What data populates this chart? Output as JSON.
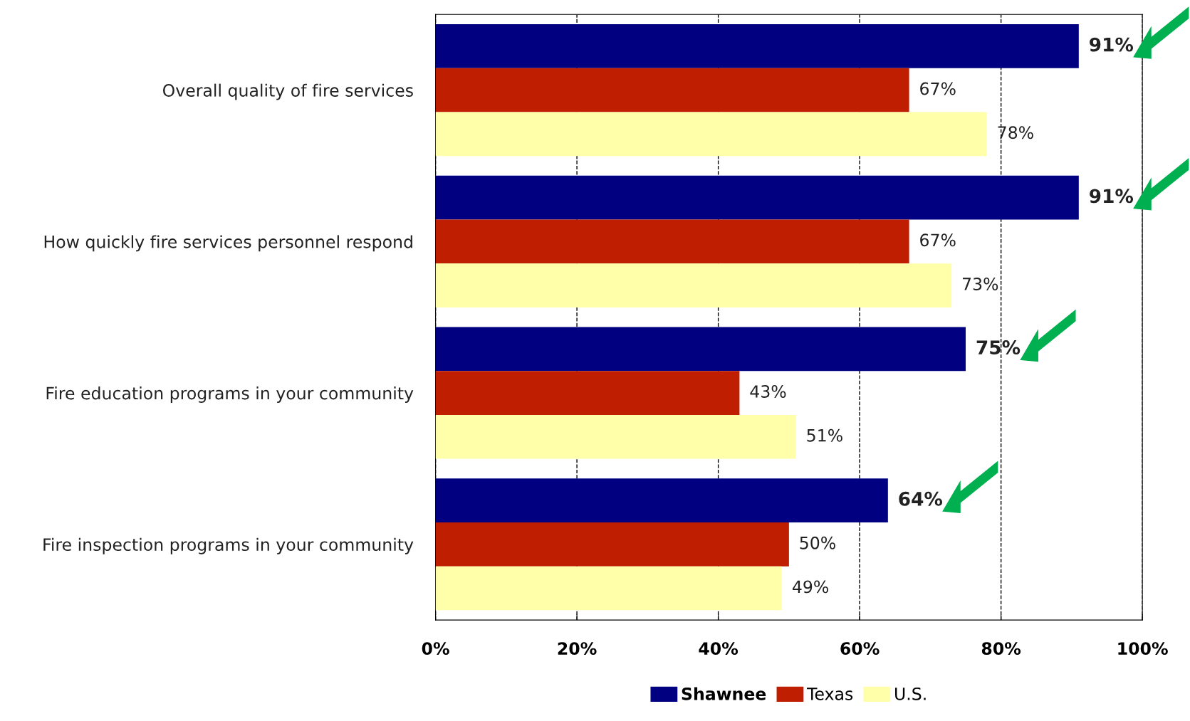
{
  "chart_data": {
    "type": "bar",
    "orientation": "horizontal",
    "categories": [
      "Overall quality of fire services",
      "How quickly fire services personnel respond",
      "Fire education programs in your community",
      "Fire inspection programs in your community"
    ],
    "series": [
      {
        "name": "Shawnee",
        "color": "#000080",
        "values": [
          91,
          91,
          75,
          64
        ],
        "value_labels": [
          "91%",
          "91%",
          "75%",
          "64%"
        ]
      },
      {
        "name": "Texas",
        "color": "#c01e00",
        "values": [
          67,
          67,
          43,
          50
        ],
        "value_labels": [
          "67%",
          "67%",
          "43%",
          "50%"
        ]
      },
      {
        "name": "U.S.",
        "color": "#ffffaa",
        "values": [
          78,
          73,
          51,
          49
        ],
        "value_labels": [
          "78%",
          "73%",
          "51%",
          "49%"
        ]
      }
    ],
    "xlim": [
      0,
      100
    ],
    "xticks": [
      {
        "value": 0,
        "label": "0%"
      },
      {
        "value": 20,
        "label": "20%"
      },
      {
        "value": 40,
        "label": "40%"
      },
      {
        "value": 60,
        "label": "60%"
      },
      {
        "value": 80,
        "label": "80%"
      },
      {
        "value": 100,
        "label": "100%"
      }
    ],
    "grid": "x",
    "legend": "bottom"
  }
}
